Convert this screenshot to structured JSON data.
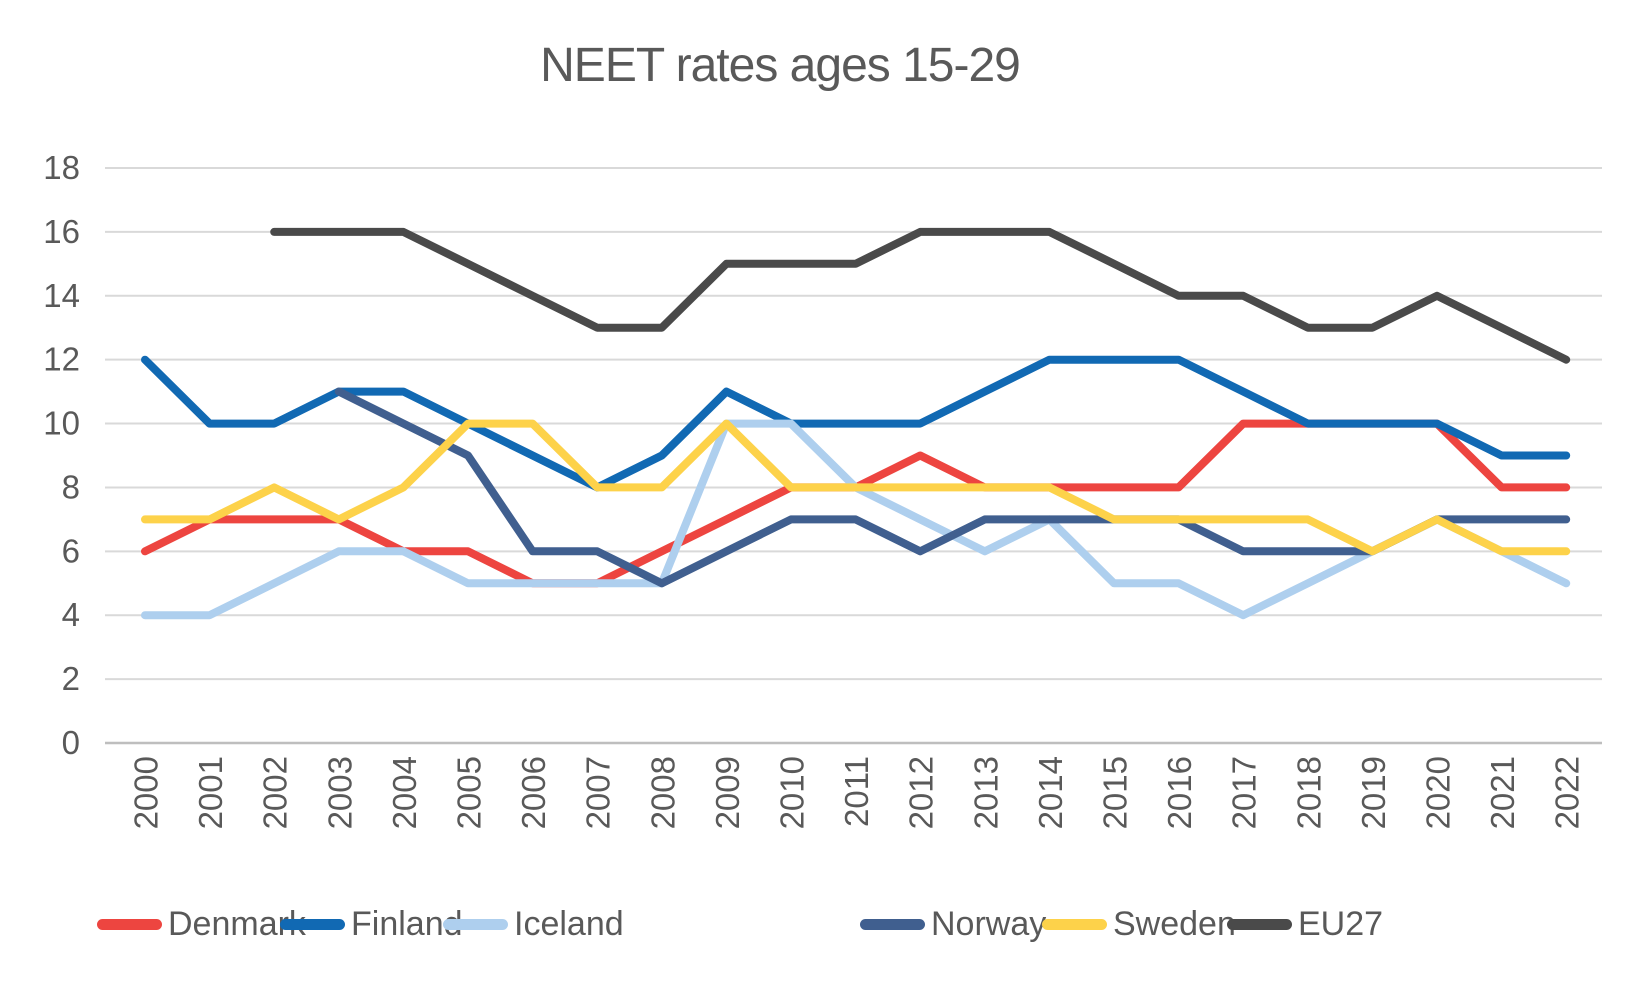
{
  "title": "NEET rates ages 15-29",
  "chart_data": {
    "type": "line",
    "title": "NEET rates ages 15-29",
    "xlabel": "",
    "ylabel": "",
    "x": [
      2000,
      2001,
      2002,
      2003,
      2004,
      2005,
      2006,
      2007,
      2008,
      2009,
      2010,
      2011,
      2012,
      2013,
      2014,
      2015,
      2016,
      2017,
      2018,
      2019,
      2020,
      2021,
      2022
    ],
    "series": [
      {
        "name": "Denmark",
        "color": "#ED4540",
        "values": [
          6,
          7,
          7,
          7,
          6,
          6,
          5,
          5,
          6,
          7,
          8,
          8,
          9,
          8,
          8,
          8,
          8,
          10,
          10,
          10,
          10,
          8,
          8
        ]
      },
      {
        "name": "Finland",
        "color": "#1169B3",
        "values": [
          12,
          10,
          10,
          11,
          11,
          10,
          9,
          8,
          9,
          11,
          10,
          10,
          10,
          11,
          12,
          12,
          12,
          11,
          10,
          10,
          10,
          9,
          9
        ]
      },
      {
        "name": "Iceland",
        "color": "#AECFEE",
        "values": [
          4,
          4,
          5,
          6,
          6,
          5,
          5,
          5,
          5,
          10,
          10,
          8,
          7,
          6,
          7,
          5,
          5,
          4,
          5,
          6,
          7,
          6,
          5
        ]
      },
      {
        "name": "Norway",
        "color": "#405F8F",
        "values": [
          null,
          null,
          null,
          11,
          10,
          9,
          6,
          6,
          5,
          6,
          7,
          7,
          6,
          7,
          7,
          7,
          7,
          6,
          6,
          6,
          7,
          7,
          7
        ]
      },
      {
        "name": "Sweden",
        "color": "#FDD24A",
        "values": [
          7,
          7,
          8,
          7,
          8,
          10,
          10,
          8,
          8,
          10,
          8,
          8,
          8,
          8,
          8,
          7,
          7,
          7,
          7,
          6,
          7,
          6,
          6
        ]
      },
      {
        "name": "EU27",
        "color": "#4A4A4A",
        "values": [
          null,
          null,
          16,
          16,
          16,
          15,
          14,
          13,
          13,
          15,
          15,
          15,
          16,
          16,
          16,
          15,
          14,
          14,
          13,
          13,
          14,
          13,
          12
        ]
      }
    ],
    "ylim": [
      0,
      18
    ],
    "ytick_step": 2,
    "yticks": [
      0,
      2,
      4,
      6,
      8,
      10,
      12,
      14,
      16,
      18
    ],
    "grid": "horizontal-gridlines-on",
    "legend_position": "bottom"
  },
  "colors": {
    "text": "#595959",
    "gridline": "#D9D9D9",
    "axis_line": "#BEBEBE",
    "background": "#FFFFFF"
  }
}
